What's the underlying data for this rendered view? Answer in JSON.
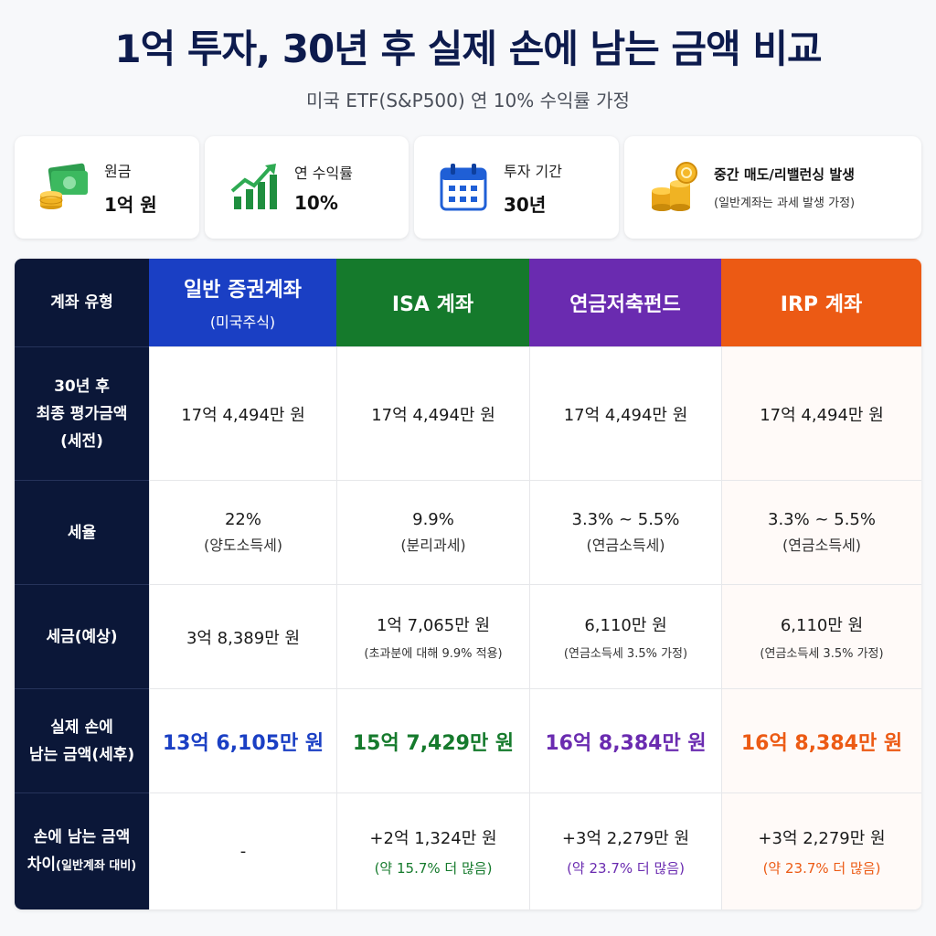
{
  "header": {
    "title": "1억 투자, 30년 후 실제 손에 남는 금액 비교",
    "subtitle": "미국 ETF(S&P500) 연 10% 수익률 가정"
  },
  "cards": [
    {
      "icon": "money-coins-icon",
      "label": "원금",
      "value": "1억 원"
    },
    {
      "icon": "growth-chart-icon",
      "label": "연 수익률",
      "value": "10%"
    },
    {
      "icon": "calendar-icon",
      "label": "투자 기간",
      "value": "30년"
    },
    {
      "icon": "gold-coins-icon",
      "label": "중간 매도/리밸런싱 발생",
      "value": "(일반계좌는 과세 발생 가정)"
    }
  ],
  "table": {
    "corner": "계좌 유형",
    "columns": [
      {
        "name": "일반 증권계좌",
        "sub": "(미국주식)",
        "color": "#1a3fc4"
      },
      {
        "name": "ISA 계좌",
        "sub": "",
        "color": "#157a2c"
      },
      {
        "name": "연금저축펀드",
        "sub": "",
        "color": "#6a2bb0"
      },
      {
        "name": "IRP 계좌",
        "sub": "",
        "color": "#ec5a14"
      }
    ],
    "rows": {
      "final_value": {
        "label": [
          "30년 후",
          "최종 평가금액",
          "(세전)"
        ],
        "values": [
          "17억 4,494만 원",
          "17억 4,494만 원",
          "17억 4,494만 원",
          "17억 4,494만 원"
        ]
      },
      "tax_rate": {
        "label": "세율",
        "values": [
          {
            "rate": "22%",
            "type": "(양도소득세)"
          },
          {
            "rate": "9.9%",
            "type": "(분리과세)"
          },
          {
            "rate": "3.3% ~ 5.5%",
            "type": "(연금소득세)"
          },
          {
            "rate": "3.3% ~ 5.5%",
            "type": "(연금소득세)"
          }
        ]
      },
      "tax_amount": {
        "label": "세금(예상)",
        "values": [
          {
            "amount": "3억 8,389만 원",
            "note": ""
          },
          {
            "amount": "1억 7,065만 원",
            "note": "(초과분에 대해 9.9% 적용)"
          },
          {
            "amount": "6,110만 원",
            "note": "(연금소득세 3.5% 가정)"
          },
          {
            "amount": "6,110만 원",
            "note": "(연금소득세 3.5% 가정)"
          }
        ]
      },
      "net_amount": {
        "label": [
          "실제 손에",
          "남는 금액(세후)"
        ],
        "values": [
          "13억 6,105만 원",
          "15억 7,429만 원",
          "16억 8,384만 원",
          "16억 8,384만 원"
        ]
      },
      "difference": {
        "label_main_1": "손에 남는 금액",
        "label_main_2": "차이",
        "label_small": "(일반계좌 대비)",
        "values": [
          {
            "amount": "-",
            "pct": ""
          },
          {
            "amount": "+2억 1,324만 원",
            "pct": "(약 15.7% 더 많음)"
          },
          {
            "amount": "+3억 2,279만 원",
            "pct": "(약 23.7% 더 많음)"
          },
          {
            "amount": "+3억 2,279만 원",
            "pct": "(약 23.7% 더 많음)"
          }
        ]
      }
    }
  }
}
